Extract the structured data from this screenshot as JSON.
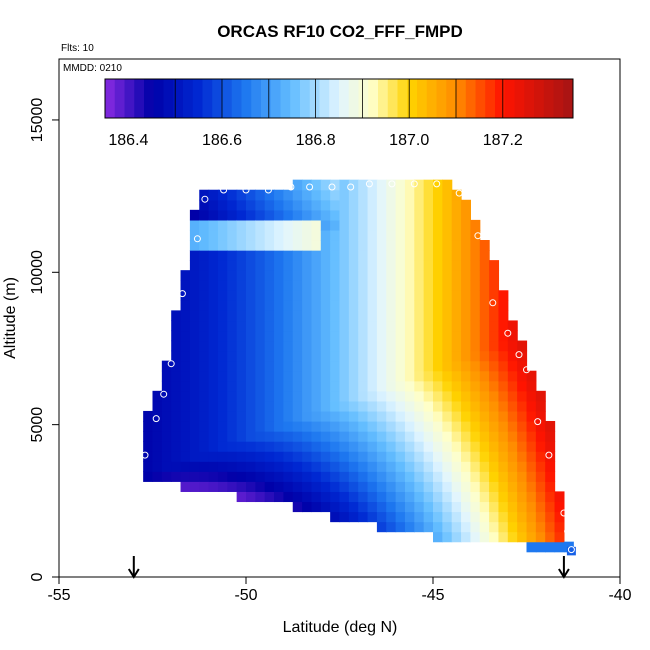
{
  "chart_data": {
    "type": "heatmap",
    "title": "ORCAS RF10 CO2_FFF_FMPD",
    "annotations": {
      "flights": "Flts: 10",
      "mmdd": "MMDD: 0210"
    },
    "xlabel": "Latitude (deg N)",
    "ylabel": "Altitude (m)",
    "xlim": [
      -55,
      -40
    ],
    "ylim": [
      0,
      16500
    ],
    "xticks": [
      -55,
      -50,
      -45,
      -40
    ],
    "xtick_labels": [
      "-55",
      "-50",
      "-45",
      "-40"
    ],
    "yticks": [
      0,
      5000,
      10000,
      15000
    ],
    "ytick_labels": [
      "0",
      "5000",
      "10000",
      "15000"
    ],
    "colorbar": {
      "range": [
        186.35,
        187.35
      ],
      "ticks": [
        186.4,
        186.6,
        186.8,
        187.0,
        187.2
      ],
      "tick_labels": [
        "186.4",
        "186.6",
        "186.8",
        "187.0",
        "187.2"
      ],
      "bounds": [
        186.35,
        186.5,
        186.6,
        186.7,
        186.8,
        186.9,
        187.0,
        187.1,
        187.2,
        187.35
      ],
      "colors": [
        "#8a2be2",
        "#0000a8",
        "#1060e8",
        "#2fa0ff",
        "#bfe6ff",
        "#ffffc8",
        "#ffd200",
        "#ff8c00",
        "#ff0000",
        "#b01515"
      ]
    },
    "domain_outline": [
      [
        -51.3,
        12.7
      ],
      [
        -50.7,
        12.7
      ],
      [
        -47.4,
        13.0
      ],
      [
        -44.5,
        13.0
      ],
      [
        -44.2,
        12.5
      ],
      [
        -43.8,
        11.7
      ],
      [
        -43.5,
        10.8
      ],
      [
        -43.0,
        9.0
      ],
      [
        -42.7,
        7.9
      ],
      [
        -42.3,
        6.6
      ],
      [
        -42.0,
        5.6
      ],
      [
        -41.7,
        4.5
      ],
      [
        -41.7,
        3.0
      ],
      [
        -41.5,
        2.3
      ],
      [
        -41.4,
        1.4
      ],
      [
        -41.2,
        0.7
      ],
      [
        -42.6,
        1.0
      ],
      [
        -44.1,
        1.2
      ],
      [
        -45.5,
        1.4
      ],
      [
        -47.2,
        1.8
      ],
      [
        -48.8,
        2.3
      ],
      [
        -50.4,
        2.7
      ],
      [
        -51.2,
        2.9
      ],
      [
        -52.6,
        3.1
      ],
      [
        -52.8,
        3.3
      ],
      [
        -52.7,
        5.3
      ],
      [
        -52.3,
        6.4
      ],
      [
        -52.1,
        7.2
      ],
      [
        -51.9,
        8.6
      ],
      [
        -51.8,
        9.3
      ],
      [
        -51.7,
        9.8
      ],
      [
        -51.5,
        10.5
      ],
      [
        -51.6,
        11.2
      ],
      [
        -51.4,
        11.9
      ]
    ],
    "flight_points": [
      [
        -52.9,
        3.0
      ],
      [
        -52.7,
        4.0
      ],
      [
        -52.4,
        5.2
      ],
      [
        -52.2,
        6.0
      ],
      [
        -52.0,
        7.0
      ],
      [
        -51.7,
        9.3
      ],
      [
        -51.3,
        11.1
      ],
      [
        -51.1,
        12.4
      ],
      [
        -50.6,
        12.7
      ],
      [
        -50.0,
        12.7
      ],
      [
        -49.4,
        12.7
      ],
      [
        -48.8,
        12.8
      ],
      [
        -48.3,
        12.8
      ],
      [
        -47.7,
        12.8
      ],
      [
        -47.2,
        12.8
      ],
      [
        -46.7,
        12.9
      ],
      [
        -46.1,
        12.9
      ],
      [
        -45.5,
        12.9
      ],
      [
        -44.9,
        12.9
      ],
      [
        -44.3,
        12.6
      ],
      [
        -43.8,
        11.2
      ],
      [
        -43.4,
        9.0
      ],
      [
        -43.0,
        8.0
      ],
      [
        -42.7,
        7.3
      ],
      [
        -42.5,
        6.8
      ],
      [
        -42.2,
        5.1
      ],
      [
        -41.9,
        4.0
      ],
      [
        -41.5,
        2.1
      ],
      [
        -41.4,
        1.5
      ],
      [
        -41.3,
        0.9
      ]
    ],
    "extra_cells": [
      {
        "lat": -41.3,
        "alt_km": 0.85,
        "value": 186.62
      }
    ],
    "arrows_at_latitude": [
      -53.0,
      -41.5
    ],
    "field_description": "Values increase from ~186.4 at southern high altitudes and low altitudes to ~187.3 at northern mid-upper altitudes."
  }
}
